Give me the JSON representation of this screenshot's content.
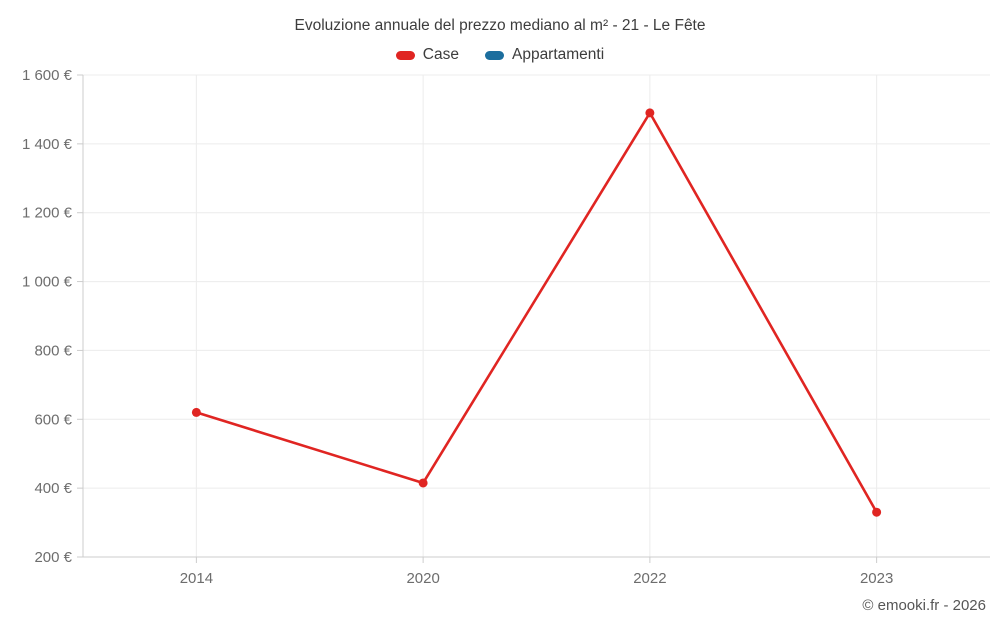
{
  "chart_data": {
    "type": "line",
    "title": "Evoluzione annuale del prezzo mediano al m² - 21 - Le Fête",
    "categories": [
      "2014",
      "2020",
      "2022",
      "2023"
    ],
    "series": [
      {
        "name": "Case",
        "color": "#e02522",
        "values": [
          620,
          415,
          1490,
          330
        ]
      },
      {
        "name": "Appartamenti",
        "color": "#1c6e9e",
        "values": []
      }
    ],
    "xlabel": "",
    "ylabel": "",
    "ylim": [
      200,
      1600
    ],
    "ytick_step": 200,
    "ytick_labels": [
      "200 €",
      "400 €",
      "600 €",
      "800 €",
      "1 000 €",
      "1 200 €",
      "1 400 €",
      "1 600 €"
    ],
    "grid": true,
    "legend_position": "top"
  },
  "footer": "© emooki.fr - 2026",
  "colors": {
    "grid": "#ececec",
    "axis": "#cccccc",
    "title_text": "#3d3d3d",
    "axis_text": "#6d6d6d",
    "footer_text": "#565656",
    "background": "#ffffff"
  }
}
